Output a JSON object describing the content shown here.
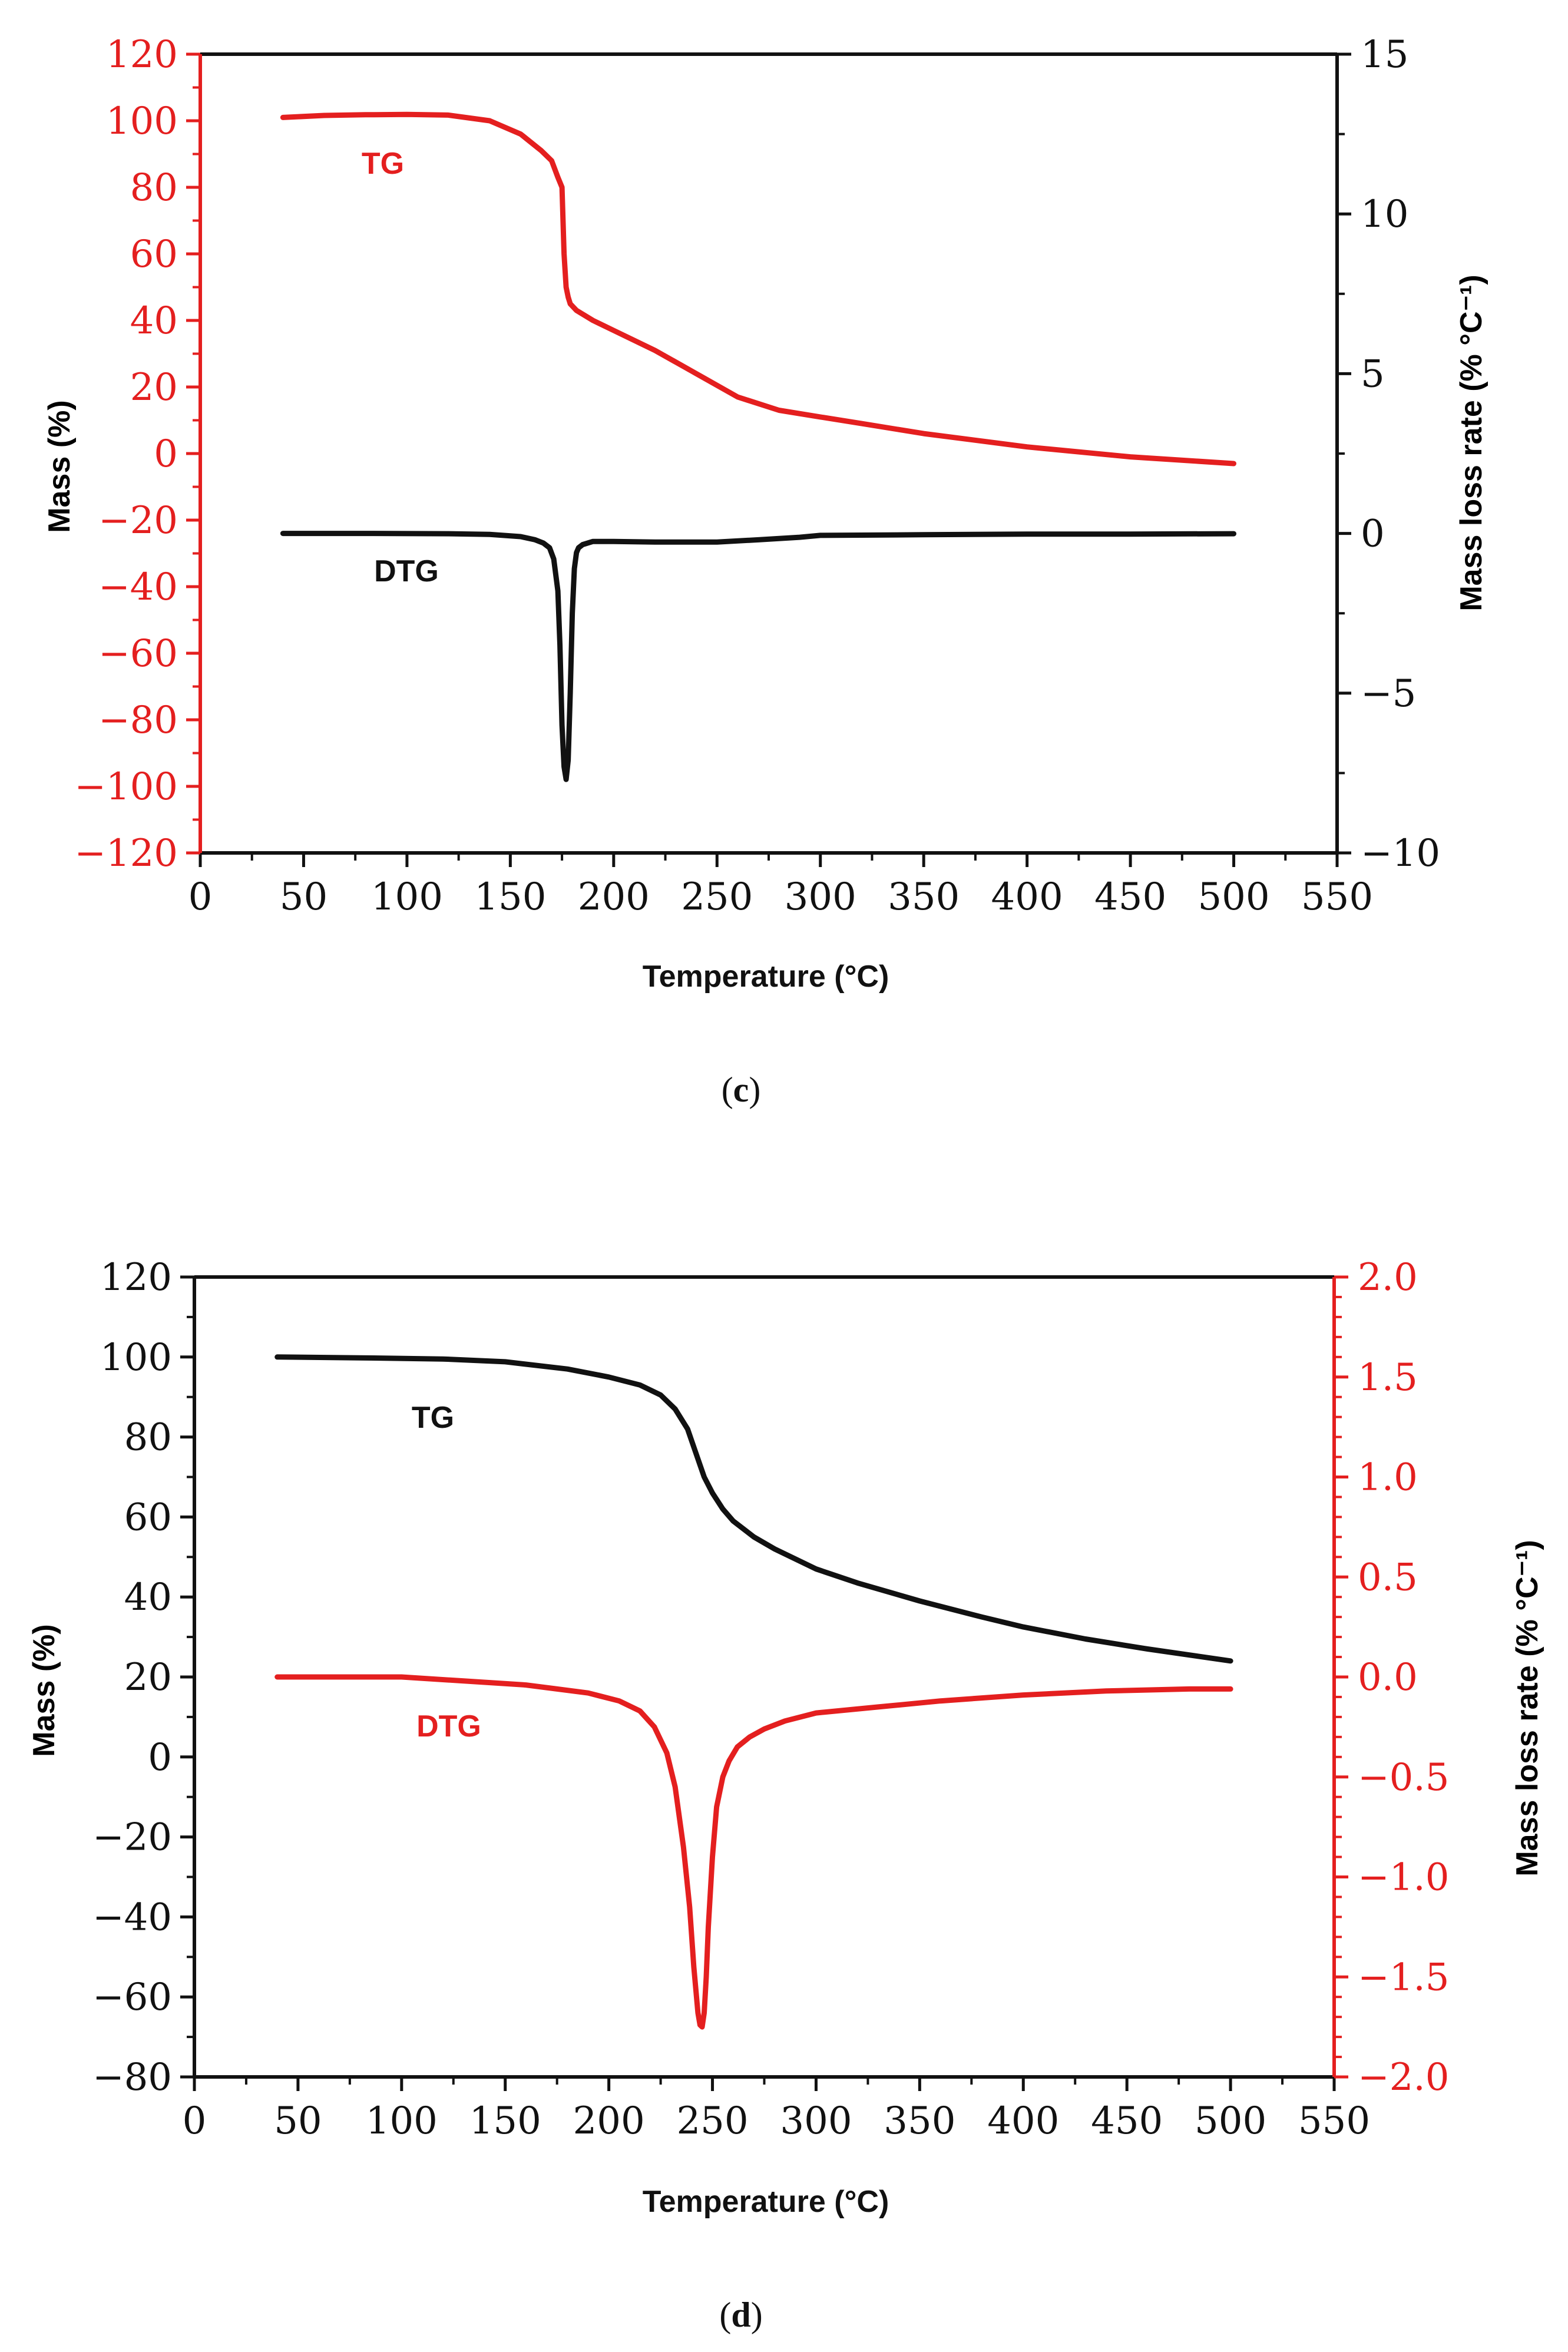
{
  "colors": {
    "red": "#e41f1f",
    "black": "#111111"
  },
  "chart_data": [
    {
      "type": "line",
      "caption": "c",
      "xlabel": "Temperature",
      "xlabel_unit": "(°C)",
      "ylabel_left": "Mass  (%)",
      "ylabel_right": "Mass loss rate (% °C⁻¹)",
      "xlim": [
        0,
        550
      ],
      "ylim_left": [
        -120,
        120
      ],
      "ylim_right": [
        -10,
        15
      ],
      "xticks": [
        "0",
        "50",
        "100",
        "150",
        "200",
        "250",
        "300",
        "350",
        "400",
        "450",
        "500",
        "550"
      ],
      "yticks_left": [
        "−120",
        "−100",
        "−80",
        "−60",
        "−40",
        "−20",
        "0",
        "20",
        "40",
        "60",
        "80",
        "100",
        "120"
      ],
      "yticks_right": [
        "−10",
        "−5",
        "0",
        "5",
        "10",
        "15"
      ],
      "left_axis_color": "red",
      "right_axis_color": "black",
      "series": [
        {
          "name": "TG",
          "axis": "left",
          "color": "red",
          "x": [
            40,
            60,
            80,
            100,
            120,
            140,
            155,
            165,
            170,
            173,
            175,
            176,
            177,
            178,
            179,
            182,
            190,
            200,
            220,
            240,
            260,
            280,
            300,
            320,
            350,
            400,
            450,
            500
          ],
          "y": [
            101,
            101.6,
            101.8,
            101.9,
            101.7,
            100,
            96,
            91,
            88,
            83,
            80,
            60,
            50,
            47,
            45,
            43,
            40,
            37,
            31,
            24,
            17,
            13,
            11,
            9,
            6,
            2,
            -1,
            -3
          ]
        },
        {
          "name": "DTG",
          "axis": "right",
          "color": "black",
          "x": [
            40,
            80,
            120,
            140,
            155,
            162,
            166,
            169,
            171,
            173,
            174,
            175,
            176,
            177,
            178,
            179,
            180,
            181,
            182,
            183,
            185,
            190,
            200,
            220,
            250,
            270,
            290,
            300,
            350,
            400,
            450,
            500
          ],
          "y": [
            0,
            0,
            -0.01,
            -0.03,
            -0.1,
            -0.2,
            -0.3,
            -0.45,
            -0.8,
            -1.8,
            -3.5,
            -6,
            -7.3,
            -7.7,
            -7.1,
            -5,
            -2.5,
            -1.1,
            -0.6,
            -0.45,
            -0.35,
            -0.25,
            -0.25,
            -0.27,
            -0.27,
            -0.2,
            -0.12,
            -0.06,
            -0.04,
            -0.02,
            -0.02,
            -0.01
          ]
        }
      ]
    },
    {
      "type": "line",
      "caption": "d",
      "xlabel": "Temperature",
      "xlabel_unit": "(°C)",
      "ylabel_left": "Mass  (%)",
      "ylabel_right": "Mass loss rate (% °C⁻¹)",
      "xlim": [
        0,
        550
      ],
      "ylim_left": [
        -80,
        120
      ],
      "ylim_right": [
        -2.0,
        2.0
      ],
      "xticks": [
        "0",
        "50",
        "100",
        "150",
        "200",
        "250",
        "300",
        "350",
        "400",
        "450",
        "500",
        "550"
      ],
      "yticks_left": [
        "−80",
        "−60",
        "−40",
        "−20",
        "0",
        "20",
        "40",
        "60",
        "80",
        "100",
        "120"
      ],
      "yticks_right": [
        "−2.0",
        "−1.5",
        "−1.0",
        "−0.5",
        "0.0",
        "0.5",
        "1.0",
        "1.5",
        "2.0"
      ],
      "left_axis_color": "black",
      "right_axis_color": "red",
      "series": [
        {
          "name": "TG",
          "axis": "left",
          "color": "black",
          "x": [
            40,
            80,
            120,
            150,
            180,
            200,
            215,
            225,
            232,
            238,
            242,
            246,
            250,
            255,
            260,
            270,
            280,
            300,
            320,
            350,
            380,
            400,
            430,
            460,
            500
          ],
          "y": [
            100,
            99.8,
            99.5,
            98.8,
            97,
            95,
            93,
            90.5,
            87,
            82,
            76,
            70,
            66,
            62,
            59,
            55,
            52,
            47,
            43.5,
            39,
            35,
            32.5,
            29.5,
            27,
            24
          ]
        },
        {
          "name": "DTG",
          "axis": "right",
          "color": "red",
          "x": [
            40,
            70,
            100,
            130,
            160,
            175,
            190,
            205,
            215,
            222,
            228,
            232,
            236,
            239,
            241,
            243,
            244,
            245,
            246,
            247,
            248,
            250,
            252,
            255,
            258,
            262,
            268,
            275,
            285,
            300,
            330,
            360,
            400,
            440,
            480,
            500
          ],
          "y": [
            0,
            0,
            0,
            -0.02,
            -0.04,
            -0.06,
            -0.08,
            -0.12,
            -0.17,
            -0.25,
            -0.38,
            -0.55,
            -0.85,
            -1.15,
            -1.45,
            -1.68,
            -1.74,
            -1.75,
            -1.68,
            -1.5,
            -1.25,
            -0.9,
            -0.65,
            -0.5,
            -0.42,
            -0.35,
            -0.3,
            -0.26,
            -0.22,
            -0.18,
            -0.15,
            -0.12,
            -0.09,
            -0.07,
            -0.06,
            -0.06
          ]
        }
      ]
    }
  ]
}
